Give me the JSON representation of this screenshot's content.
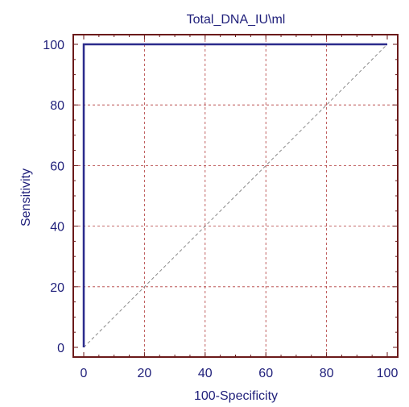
{
  "chart_data": {
    "type": "line",
    "title": "Total_DNA_IU\\ml",
    "xlabel": "100-Specificity",
    "ylabel": "Sensitivity",
    "xlim": [
      0,
      100
    ],
    "ylim": [
      0,
      100
    ],
    "xticks": [
      "0",
      "20",
      "40",
      "60",
      "80",
      "100"
    ],
    "yticks": [
      "0",
      "20",
      "40",
      "60",
      "80",
      "100"
    ],
    "grid": true,
    "series": [
      {
        "x": [
          0,
          0,
          100
        ],
        "y": [
          0,
          100,
          100
        ]
      }
    ],
    "reference_line": {
      "x": [
        0,
        100
      ],
      "y": [
        0,
        100
      ]
    }
  },
  "colors": {
    "frame": "#6b1a1a",
    "grid": "#b03a3a",
    "series": "#2b2b8c",
    "reference": "#8a8a8a",
    "text": "#1f1f7a"
  }
}
